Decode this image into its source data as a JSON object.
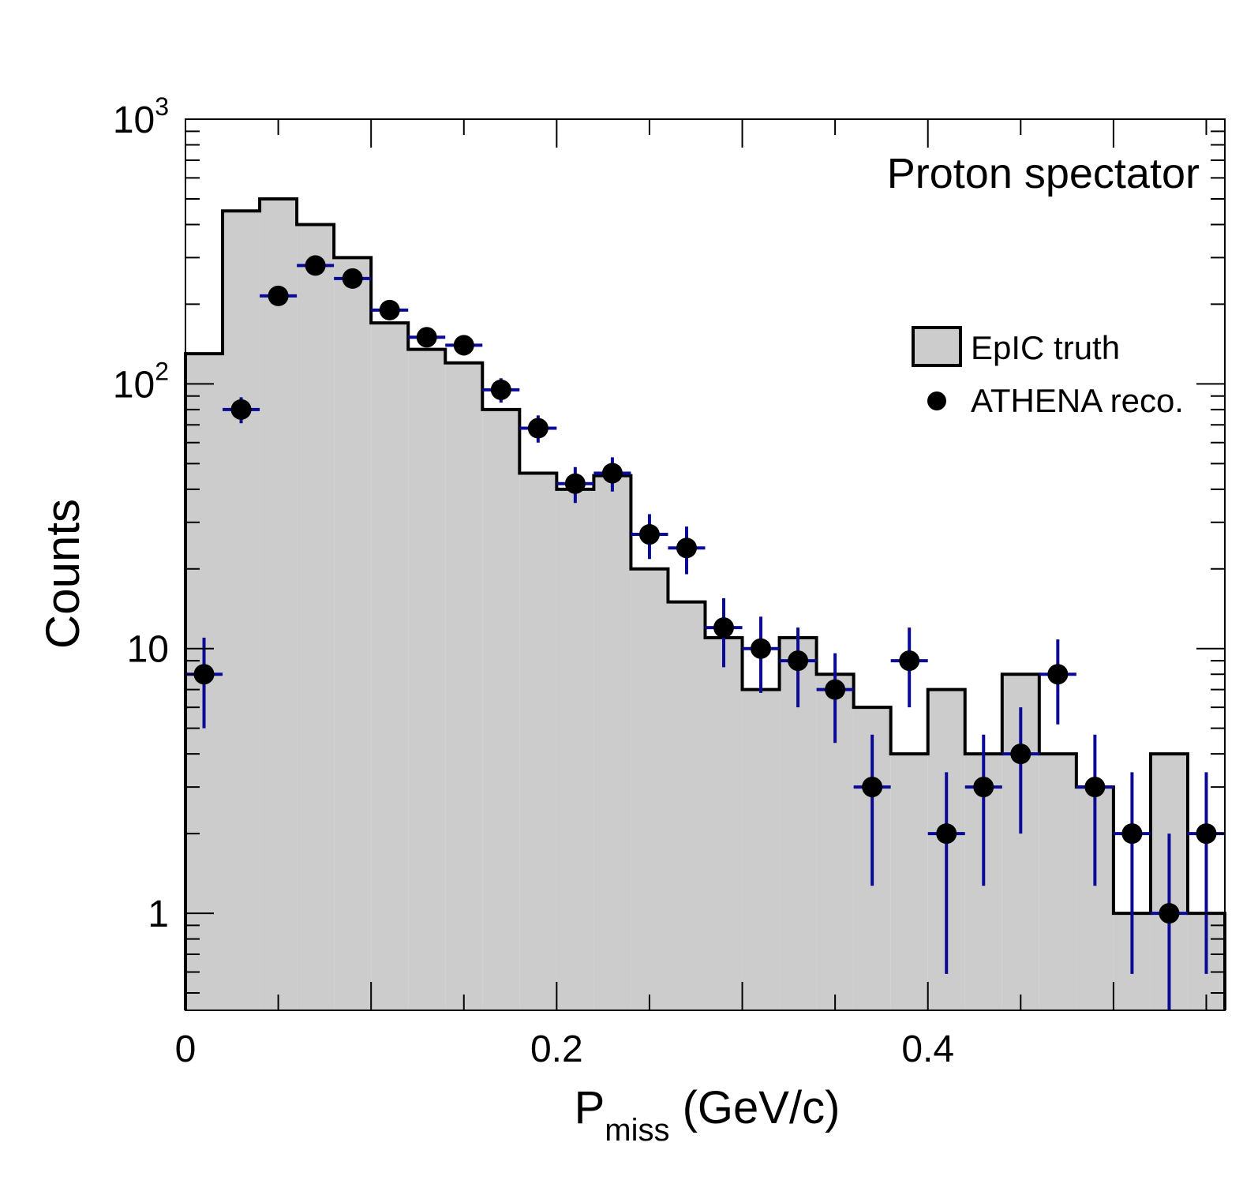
{
  "chart_data": {
    "type": "bar",
    "annotation": "Proton spectator",
    "xlabel": {
      "main": "P",
      "sub": "miss",
      "unit": " (GeV/c)"
    },
    "ylabel": "Counts",
    "xlim": [
      0,
      0.56
    ],
    "ylim": [
      0.43,
      1000
    ],
    "yscale": "log",
    "x_ticks": [
      {
        "value": 0,
        "label": "0"
      },
      {
        "value": 0.2,
        "label": "0.2"
      },
      {
        "value": 0.4,
        "label": "0.4"
      }
    ],
    "y_ticks": [
      {
        "value": 1,
        "base": "1",
        "exp": ""
      },
      {
        "value": 10,
        "base": "10",
        "exp": ""
      },
      {
        "value": 100,
        "base": "10",
        "exp": "2"
      },
      {
        "value": 1000,
        "base": "10",
        "exp": "3"
      }
    ],
    "grid": false,
    "legend_position": "right",
    "colors": {
      "fill": "#cccccc",
      "outline": "#000000",
      "errorbar": "#0a0a96",
      "marker": "#000000"
    },
    "series": [
      {
        "name": "EpIC truth",
        "kind": "histogram",
        "bin_edges": [
          0,
          0.02,
          0.04,
          0.06,
          0.08,
          0.1,
          0.12,
          0.14,
          0.16,
          0.18,
          0.2,
          0.22,
          0.24,
          0.26,
          0.28,
          0.3,
          0.32,
          0.34,
          0.36,
          0.38,
          0.4,
          0.42,
          0.44,
          0.46,
          0.48,
          0.5,
          0.52,
          0.54,
          0.56
        ],
        "values": [
          130,
          450,
          500,
          400,
          300,
          170,
          135,
          120,
          80,
          46,
          40,
          45,
          20,
          15,
          11,
          7,
          11,
          8,
          6,
          4,
          7,
          4,
          8,
          4,
          3,
          1,
          4,
          1
        ]
      },
      {
        "name": "ATHENA reco.",
        "kind": "points",
        "x": [
          0.01,
          0.03,
          0.05,
          0.07,
          0.09,
          0.11,
          0.13,
          0.15,
          0.17,
          0.19,
          0.21,
          0.23,
          0.25,
          0.27,
          0.29,
          0.31,
          0.33,
          0.35,
          0.37,
          0.39,
          0.41,
          0.43,
          0.45,
          0.47,
          0.49,
          0.51,
          0.53,
          0.55
        ],
        "y": [
          8,
          80,
          215,
          280,
          250,
          190,
          150,
          140,
          95,
          68,
          42,
          46,
          27,
          24,
          12,
          10,
          9,
          7,
          3,
          9,
          2,
          3,
          4,
          8,
          3,
          2,
          1,
          2
        ],
        "err_low": [
          3,
          9,
          15,
          17,
          16,
          14,
          12,
          12,
          10,
          8,
          6.5,
          6.8,
          5.2,
          4.9,
          3.5,
          3.2,
          3,
          2.6,
          1.73,
          3,
          1.41,
          1.73,
          2,
          2.83,
          1.73,
          1.41,
          1,
          1.41
        ],
        "err_high": [
          3,
          9,
          15,
          17,
          16,
          14,
          12,
          12,
          10,
          8,
          6.5,
          6.8,
          5.2,
          4.9,
          3.5,
          3.2,
          3,
          2.6,
          1.73,
          3,
          1.41,
          1.73,
          2,
          2.83,
          1.73,
          1.41,
          1,
          1.41
        ]
      }
    ]
  }
}
